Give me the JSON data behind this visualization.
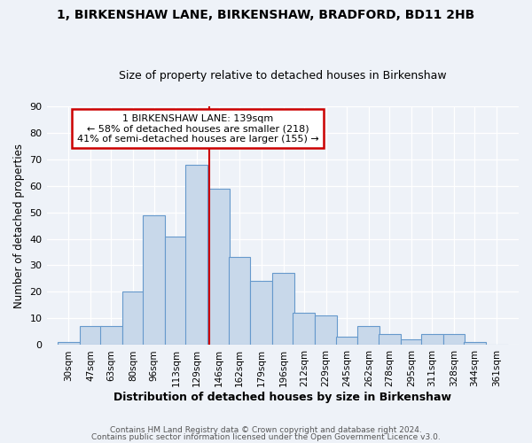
{
  "title1": "1, BIRKENSHAW LANE, BIRKENSHAW, BRADFORD, BD11 2HB",
  "title2": "Size of property relative to detached houses in Birkenshaw",
  "xlabel": "Distribution of detached houses by size in Birkenshaw",
  "ylabel": "Number of detached properties",
  "bin_centers": [
    30,
    47,
    63,
    80,
    96,
    113,
    129,
    146,
    162,
    179,
    196,
    212,
    229,
    245,
    262,
    278,
    295,
    311,
    328,
    344,
    361
  ],
  "bin_labels": [
    "30sqm",
    "47sqm",
    "63sqm",
    "80sqm",
    "96sqm",
    "113sqm",
    "129sqm",
    "146sqm",
    "162sqm",
    "179sqm",
    "196sqm",
    "212sqm",
    "229sqm",
    "245sqm",
    "262sqm",
    "278sqm",
    "295sqm",
    "311sqm",
    "328sqm",
    "344sqm",
    "361sqm"
  ],
  "bar_heights": [
    1,
    7,
    7,
    20,
    49,
    41,
    68,
    59,
    33,
    24,
    27,
    12,
    11,
    3,
    7,
    4,
    2,
    4,
    4,
    1,
    0
  ],
  "bar_color": "#c8d8ea",
  "bar_edgecolor": "#6699cc",
  "bin_width": 17,
  "property_size": 139,
  "red_line_color": "#cc0000",
  "annotation_text": "1 BIRKENSHAW LANE: 139sqm\n← 58% of detached houses are smaller (218)\n41% of semi-detached houses are larger (155) →",
  "annotation_box_color": "#ffffff",
  "annotation_box_edgecolor": "#cc0000",
  "footnote1": "Contains HM Land Registry data © Crown copyright and database right 2024.",
  "footnote2": "Contains public sector information licensed under the Open Government Licence v3.0.",
  "background_color": "#eef2f8",
  "ylim": [
    0,
    90
  ],
  "yticks": [
    0,
    10,
    20,
    30,
    40,
    50,
    60,
    70,
    80,
    90
  ]
}
